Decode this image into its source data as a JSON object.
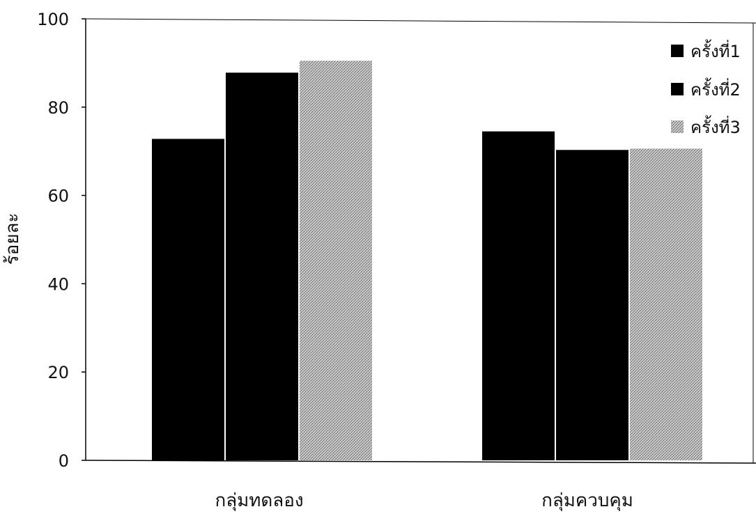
{
  "chart_data": {
    "type": "bar",
    "categories": [
      "กลุ่มทดลอง",
      "กลุ่มควบคุม"
    ],
    "series": [
      {
        "name": "ครั้งที่1",
        "values": [
          72.8,
          74.5
        ],
        "color": "#000000",
        "pattern": "solid"
      },
      {
        "name": "ครั้งที่2",
        "values": [
          87.8,
          70.3
        ],
        "color": "#000000",
        "pattern": "solid"
      },
      {
        "name": "ครั้งที่3",
        "values": [
          90.5,
          70.6
        ],
        "color": "#b0b0b0",
        "pattern": "stipple"
      }
    ],
    "title": "",
    "xlabel": "",
    "ylabel": "ร้อยละ",
    "ylim": [
      0,
      100
    ],
    "yticks": [
      "0",
      "20",
      "40",
      "60",
      "80",
      "100"
    ],
    "grid": false,
    "legend_position": "top-right"
  }
}
